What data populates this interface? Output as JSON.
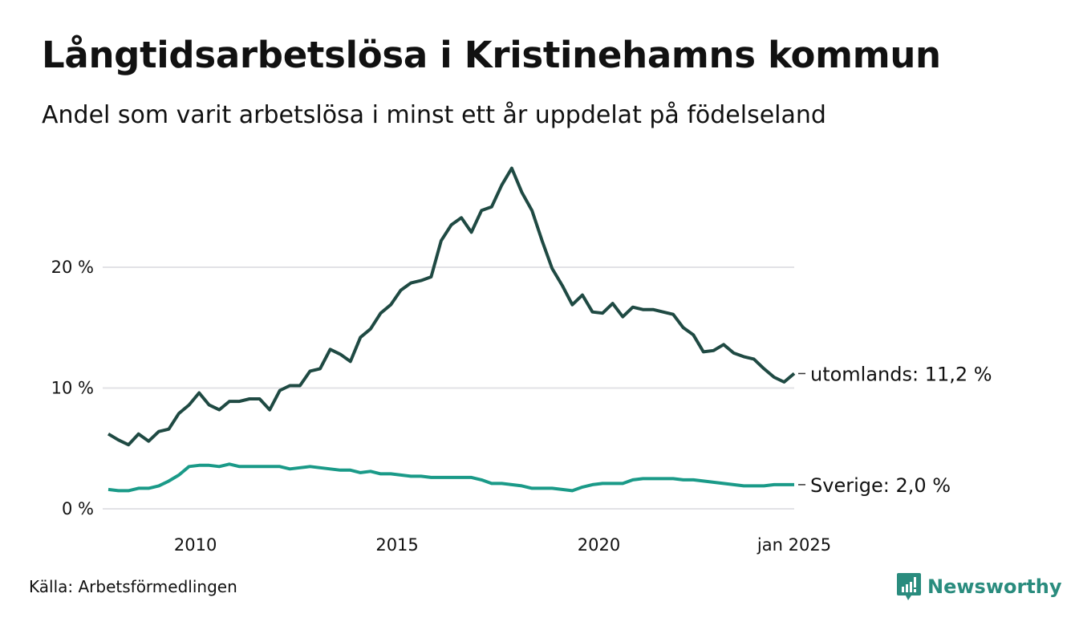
{
  "title": "Långtidsarbetslösa i Kristinehamns kommun",
  "subtitle": "Andel som varit arbetslösa i minst ett år uppdelat på födelseland",
  "source": "Källa: Arbetsförmedlingen",
  "logo": "Newsworthy",
  "colors": {
    "utomlands": "#1f4a43",
    "sverige": "#1a9a88",
    "grid": "#e2e2e6",
    "brand": "#2a8c7e"
  },
  "chart_data": {
    "type": "line",
    "title": "Långtidsarbetslösa i Kristinehamns kommun",
    "xlabel": "",
    "ylabel": "",
    "xlim": [
      2008.0,
      2025.0
    ],
    "ylim": [
      0,
      28
    ],
    "grid": true,
    "yticks": [
      {
        "value": 0,
        "label": "0 %"
      },
      {
        "value": 10,
        "label": "10 %"
      },
      {
        "value": 20,
        "label": "20 %"
      }
    ],
    "xticks": [
      {
        "value": 2010,
        "label": "2010"
      },
      {
        "value": 2015,
        "label": "2015"
      },
      {
        "value": 2020,
        "label": "2020"
      },
      {
        "value": 2025,
        "label": "jan 2025"
      }
    ],
    "x": [
      2008.0,
      2008.25,
      2008.5,
      2008.75,
      2009.0,
      2009.25,
      2009.5,
      2009.75,
      2010.0,
      2010.25,
      2010.5,
      2010.75,
      2011.0,
      2011.25,
      2011.5,
      2011.75,
      2012.0,
      2012.25,
      2012.5,
      2012.75,
      2013.0,
      2013.25,
      2013.5,
      2013.75,
      2014.0,
      2014.25,
      2014.5,
      2014.75,
      2015.0,
      2015.25,
      2015.5,
      2015.75,
      2016.0,
      2016.25,
      2016.5,
      2016.75,
      2017.0,
      2017.25,
      2017.5,
      2017.75,
      2018.0,
      2018.25,
      2018.5,
      2018.75,
      2019.0,
      2019.25,
      2019.5,
      2019.75,
      2020.0,
      2020.25,
      2020.5,
      2020.75,
      2021.0,
      2021.25,
      2021.5,
      2021.75,
      2022.0,
      2022.25,
      2022.5,
      2022.75,
      2023.0,
      2023.25,
      2023.5,
      2023.75,
      2024.0,
      2024.25,
      2024.5,
      2024.75,
      2025.0
    ],
    "series": [
      {
        "name": "utomlands",
        "end_label": "utomlands: 11,2 %",
        "values": [
          6.2,
          5.7,
          5.3,
          6.2,
          5.6,
          6.4,
          6.6,
          7.9,
          8.6,
          9.6,
          8.6,
          8.2,
          8.9,
          8.9,
          9.1,
          9.1,
          8.2,
          9.8,
          10.2,
          10.2,
          11.4,
          11.6,
          13.2,
          12.8,
          12.2,
          14.2,
          14.9,
          16.2,
          16.9,
          18.1,
          18.7,
          18.9,
          19.2,
          22.2,
          23.5,
          24.1,
          22.9,
          24.7,
          25.0,
          26.8,
          28.2,
          26.2,
          24.7,
          22.2,
          19.9,
          18.5,
          16.9,
          17.7,
          16.3,
          16.2,
          17.0,
          15.9,
          16.7,
          16.5,
          16.5,
          16.3,
          16.1,
          15.0,
          14.4,
          13.0,
          13.1,
          13.6,
          12.9,
          12.6,
          12.4,
          11.6,
          10.9,
          10.5,
          11.2
        ]
      },
      {
        "name": "Sverige",
        "end_label": "Sverige:  2,0 %",
        "values": [
          1.6,
          1.5,
          1.5,
          1.7,
          1.7,
          1.9,
          2.3,
          2.8,
          3.5,
          3.6,
          3.6,
          3.5,
          3.7,
          3.5,
          3.5,
          3.5,
          3.5,
          3.5,
          3.3,
          3.4,
          3.5,
          3.4,
          3.3,
          3.2,
          3.2,
          3.0,
          3.1,
          2.9,
          2.9,
          2.8,
          2.7,
          2.7,
          2.6,
          2.6,
          2.6,
          2.6,
          2.6,
          2.4,
          2.1,
          2.1,
          2.0,
          1.9,
          1.7,
          1.7,
          1.7,
          1.6,
          1.5,
          1.8,
          2.0,
          2.1,
          2.1,
          2.1,
          2.4,
          2.5,
          2.5,
          2.5,
          2.5,
          2.4,
          2.4,
          2.3,
          2.2,
          2.1,
          2.0,
          1.9,
          1.9,
          1.9,
          2.0,
          2.0,
          2.0
        ]
      }
    ]
  }
}
